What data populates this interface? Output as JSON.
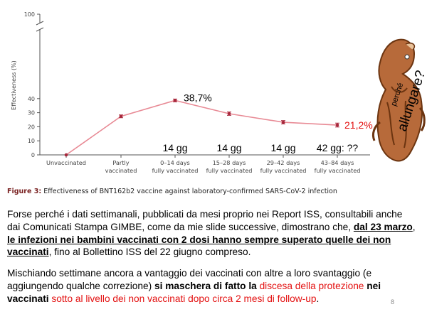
{
  "chart_data": {
    "type": "line",
    "ylabel": "Effectiveness (%)",
    "ylim": [
      0,
      100
    ],
    "yticks": [
      0,
      10,
      20,
      30,
      40,
      100
    ],
    "axis_break": "between 40 and 100",
    "categories": [
      [
        "Unvaccinated"
      ],
      [
        "Partly",
        "vaccinated"
      ],
      [
        "0–14 days",
        "fully vaccinated"
      ],
      [
        "15–28 days",
        "fully vaccinated"
      ],
      [
        "29–42 days",
        "fully vaccinated"
      ],
      [
        "43–84 days",
        "fully vaccinated"
      ]
    ],
    "values": [
      0,
      27.4,
      38.7,
      29.3,
      23.2,
      21.2
    ],
    "errors": [
      0,
      1.0,
      1.0,
      1.2,
      1.2,
      1.4
    ],
    "annotations": {
      "peak_label": "38,7%",
      "last_label": "21,2%",
      "gg_labels": [
        "14 gg",
        "14 gg",
        "14 gg",
        "42 gg: ??"
      ]
    },
    "caption_prefix": "Figure 3:",
    "caption_text": "Effectiveness of BNT162b2 vaccine against laboratory-confirmed SARS-CoV-2 infection"
  },
  "colors": {
    "line": "#e88a95",
    "marker": "#a8283c",
    "axis": "#555555",
    "accent_red": "#e31010"
  },
  "cartoon": {
    "top_text": "perché",
    "big_text": "allungare?"
  },
  "paragraph1": {
    "part1": "Forse perché i dati settimanali, pubblicati da mesi proprio nei Report ISS, consultabili anche dai Comunicati Stampa GIMBE, come da mie slide successive, dimostrano che, ",
    "bold_date": "dal 23 marzo",
    "sep": ", ",
    "bold_underlined": "le infezioni nei bambini vaccinati con 2 dosi hanno sempre superato quelle dei non vaccinati",
    "part2": ", fino al Bollettino ISS del 22 giugno compreso."
  },
  "paragraph2": {
    "part1": "Mischiando settimane ancora a vantaggio dei vaccinati con altre a loro svantaggio (e aggiungendo qualche correzione) ",
    "part2": "si maschera di fatto la ",
    "red1": "discesa della protezione",
    "part3": " nei vaccinati ",
    "red2": "sotto al livello dei non vaccinati dopo circa 2 mesi di follow-up",
    "part4": "."
  },
  "slide_number": "8"
}
